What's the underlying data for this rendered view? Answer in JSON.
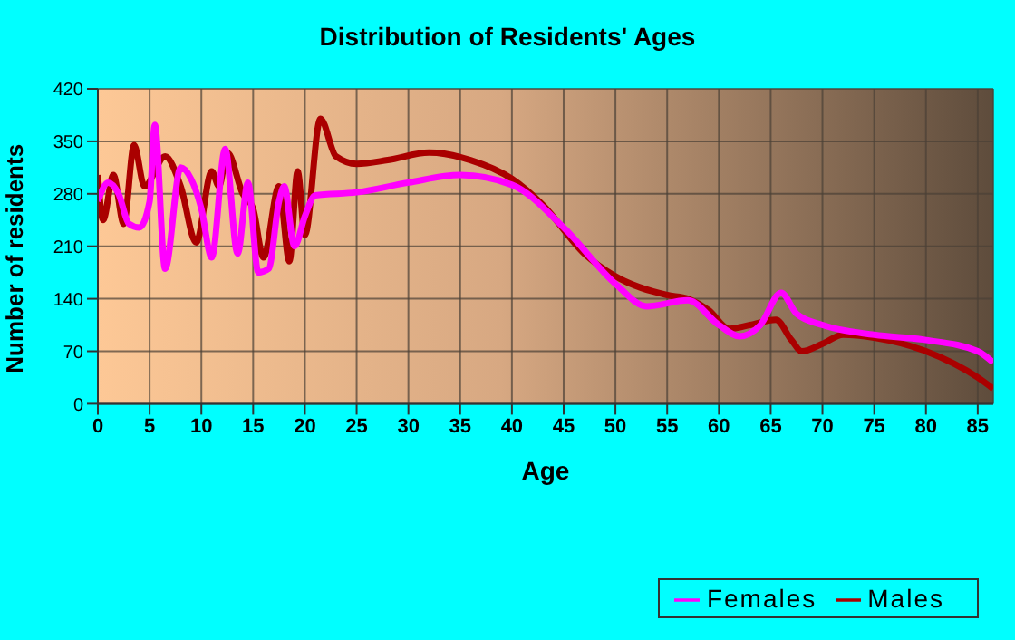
{
  "chart_data": {
    "type": "line",
    "title": "Distribution of Residents' Ages",
    "xlabel": "Age",
    "ylabel": "Number of residents",
    "xlim": [
      0,
      86.5
    ],
    "xticks": [
      0,
      5,
      10,
      15,
      20,
      25,
      30,
      35,
      40,
      45,
      50,
      55,
      60,
      65,
      70,
      75,
      80,
      85
    ],
    "ylim": [
      0,
      420
    ],
    "yticks": [
      0,
      70,
      140,
      210,
      280,
      350,
      420
    ],
    "grid": true,
    "legend": "bottom right",
    "marker": "none",
    "line_style": "solid",
    "series": [
      {
        "name": "Males",
        "color": "#aa0000",
        "x": [
          0,
          0.5,
          1.5,
          2.5,
          3.5,
          4.5,
          6.5,
          8,
          9.5,
          11,
          11.7,
          12.5,
          14,
          15,
          16,
          17.5,
          18.5,
          19.3,
          20,
          21.5,
          23,
          25,
          28,
          32,
          36,
          40,
          43,
          47,
          50,
          55,
          57,
          59,
          61,
          63,
          65.5,
          67,
          68,
          70,
          72,
          75,
          80,
          85,
          86.5
        ],
        "values": [
          305,
          245,
          305,
          240,
          345,
          290,
          330,
          290,
          215,
          310,
          290,
          335,
          280,
          260,
          195,
          290,
          190,
          310,
          225,
          380,
          330,
          320,
          325,
          335,
          325,
          300,
          265,
          200,
          170,
          145,
          140,
          125,
          100,
          105,
          112,
          85,
          70,
          80,
          92,
          88,
          70,
          35,
          20
        ]
      },
      {
        "name": "Females",
        "color": "#ff00ff",
        "x": [
          0,
          1,
          2,
          3,
          4,
          5,
          5.5,
          6.5,
          8,
          9,
          10,
          11,
          12.3,
          13.5,
          14.5,
          15.5,
          16.5,
          17.5,
          18,
          19,
          20,
          21,
          25,
          30,
          35,
          40,
          45,
          50,
          53,
          57,
          60,
          62,
          64,
          66,
          67.5,
          70,
          75,
          80,
          85,
          86.5
        ],
        "values": [
          270,
          295,
          280,
          240,
          235,
          270,
          372,
          180,
          315,
          300,
          260,
          195,
          340,
          200,
          295,
          175,
          180,
          270,
          290,
          210,
          250,
          278,
          282,
          295,
          305,
          292,
          235,
          160,
          130,
          138,
          105,
          90,
          105,
          148,
          120,
          105,
          92,
          85,
          70,
          55
        ]
      }
    ]
  }
}
